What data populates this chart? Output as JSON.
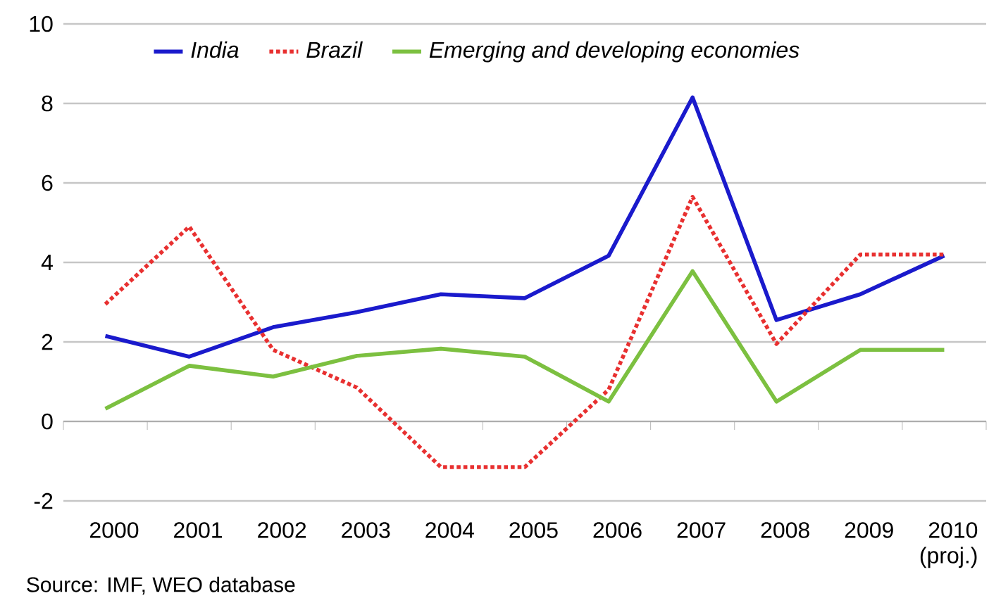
{
  "chart_data": {
    "type": "line",
    "categories": [
      "2000",
      "2001",
      "2002",
      "2003",
      "2004",
      "2005",
      "2006",
      "2007",
      "2008",
      "2009",
      "2010 (proj.)"
    ],
    "series": [
      {
        "name": "India",
        "color": "#1a1acc",
        "line_style": "solid",
        "values": [
          2.15,
          1.63,
          2.37,
          2.75,
          3.2,
          3.1,
          4.17,
          8.15,
          2.55,
          3.2,
          4.17
        ]
      },
      {
        "name": "Brazil",
        "color": "#e83030",
        "line_style": "dotted",
        "values": [
          2.95,
          4.9,
          1.8,
          0.85,
          -1.15,
          -1.15,
          0.8,
          5.65,
          1.95,
          4.2,
          4.2
        ]
      },
      {
        "name": "Emerging and developing economies",
        "color": "#7cc040",
        "line_style": "solid",
        "values": [
          0.32,
          1.4,
          1.13,
          1.65,
          1.83,
          1.63,
          0.5,
          3.78,
          0.5,
          1.8,
          1.8
        ]
      }
    ],
    "ylim": [
      -2,
      10
    ],
    "yticks": [
      -2,
      0,
      2,
      4,
      6,
      8,
      10
    ],
    "grid": "y",
    "legend": "top",
    "marker": "none",
    "annotations": [
      "Source: IMF, WEO database"
    ]
  }
}
